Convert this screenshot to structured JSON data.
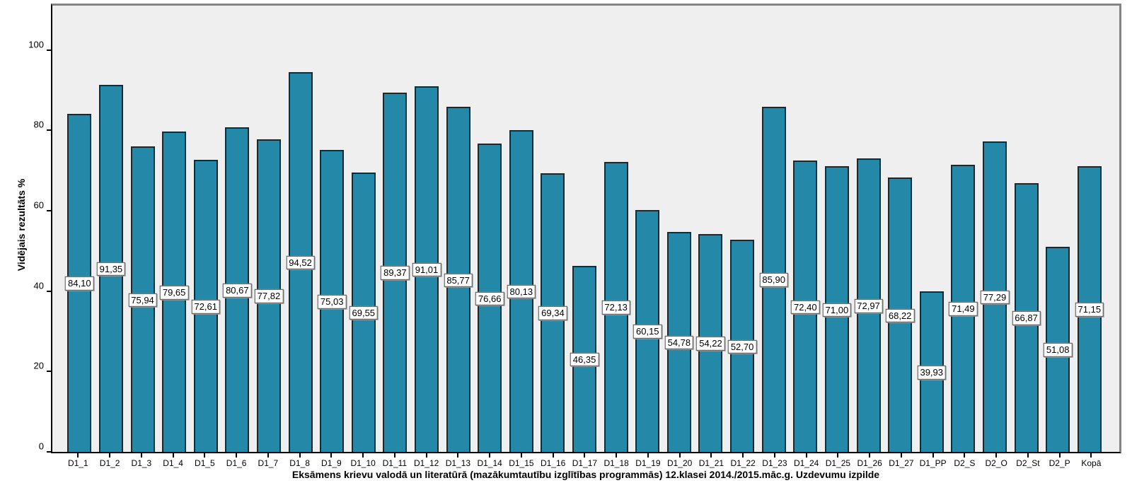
{
  "chart_data": {
    "type": "bar",
    "title": "",
    "xlabel": "Eksāmens krievu valodā un literatūrā (mazākumtautību izglītības programmās) 12.klasei 2014./2015.māc.g. Uzdevumu izpilde",
    "ylabel": "Vidējais rezultāts %",
    "categories": [
      "D1_1",
      "D1_2",
      "D1_3",
      "D1_4",
      "D1_5",
      "D1_6",
      "D1_7",
      "D1_8",
      "D1_9",
      "D1_10",
      "D1_11",
      "D1_12",
      "D1_13",
      "D1_14",
      "D1_15",
      "D1_16",
      "D1_17",
      "D1_18",
      "D1_19",
      "D1_20",
      "D1_21",
      "D1_22",
      "D1_23",
      "D1_24",
      "D1_25",
      "D1_26",
      "D1_27",
      "D1_PP",
      "D2_S",
      "D2_O",
      "D2_St",
      "D2_P",
      "Kopā"
    ],
    "values": [
      84.1,
      91.35,
      75.94,
      79.65,
      72.61,
      80.67,
      77.82,
      94.52,
      75.03,
      69.55,
      89.37,
      91.01,
      85.77,
      76.66,
      80.13,
      69.34,
      46.35,
      72.13,
      60.15,
      54.78,
      54.22,
      52.7,
      85.9,
      72.4,
      71.0,
      72.97,
      68.22,
      39.93,
      71.49,
      77.29,
      66.87,
      51.08,
      71.15
    ],
    "value_labels": [
      "84,10",
      "91,35",
      "75,94",
      "79,65",
      "72,61",
      "80,67",
      "77,82",
      "94,52",
      "75,03",
      "69,55",
      "89,37",
      "91,01",
      "85,77",
      "76,66",
      "80,13",
      "69,34",
      "46,35",
      "72,13",
      "60,15",
      "54,78",
      "54,22",
      "52,70",
      "85,90",
      "72,40",
      "71,00",
      "72,97",
      "68,22",
      "39,93",
      "71,49",
      "77,29",
      "66,87",
      "51,08",
      "71,15"
    ],
    "yticks": [
      0,
      20,
      40,
      60,
      80,
      100
    ],
    "ylim": [
      0,
      111
    ],
    "grid": false,
    "legend": "none",
    "colors": {
      "bar_fill": "#2489A9",
      "bar_border": "#132B35",
      "plot_background": "#EFEFEF",
      "frame": "#848484",
      "axis": "#000000",
      "label_box_background": "#FFFFFF",
      "label_box_border": "#4D4D4D"
    }
  }
}
